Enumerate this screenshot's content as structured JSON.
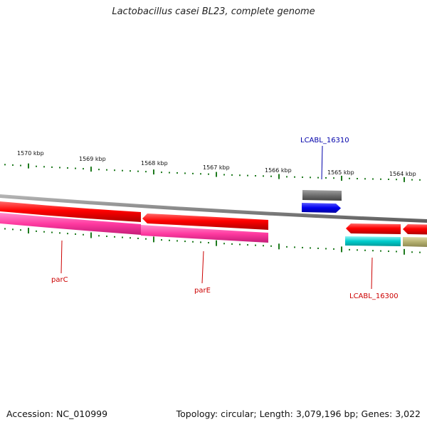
{
  "title": "Lactobacillus casei BL23, complete genome",
  "footer": {
    "accession": "Accession: NC_010999",
    "summary": "Topology: circular; Length: 3,079,196 bp; Genes: 3,022"
  },
  "ruler": {
    "unit": "kbp",
    "ticks": [
      {
        "label": "1570 kbp"
      },
      {
        "label": "1569 kbp"
      },
      {
        "label": "1568 kbp"
      },
      {
        "label": "1567 kbp"
      },
      {
        "label": "1566 kbp"
      },
      {
        "label": "1565 kbp"
      },
      {
        "label": "1564 kbp"
      }
    ]
  },
  "colors": {
    "backbone": "#8a8a8a",
    "tick": "#1e7a1e",
    "cds": "#ff0000",
    "gene": "#ff3aa0",
    "gene_pair_right": "#00cccc",
    "gene_pair_far": "#b5b070",
    "gray_feature": "#6e6e6e",
    "blue_feature": "#0000ee",
    "label_red": "#cc0000",
    "label_blue": "#0000aa"
  },
  "features": {
    "labels": {
      "parC": "parC",
      "parE": "parE",
      "lcabl_16300": "LCABL_16300",
      "lcabl_16310": "LCABL_16310"
    }
  }
}
